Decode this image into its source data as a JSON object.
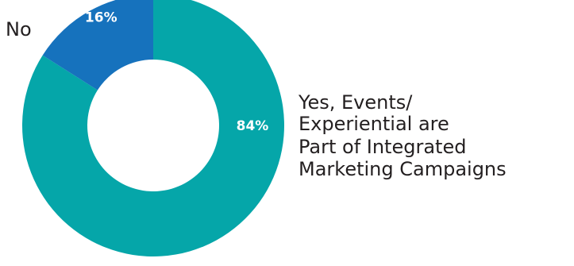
{
  "chart_data": {
    "type": "pie",
    "subtype": "donut",
    "categories": [
      "Yes, Events/ Experiential are Part of Integrated Marketing Campaigns",
      "No"
    ],
    "values": [
      84,
      16
    ],
    "data_labels": [
      "84%",
      "16%"
    ],
    "colors": [
      "#05a6a9",
      "#1672bd"
    ],
    "legend": {
      "no": [
        "No"
      ],
      "yes": [
        "Yes, Events/",
        "Experiential are",
        "Part of Integrated",
        "Marketing Campaigns"
      ]
    }
  }
}
